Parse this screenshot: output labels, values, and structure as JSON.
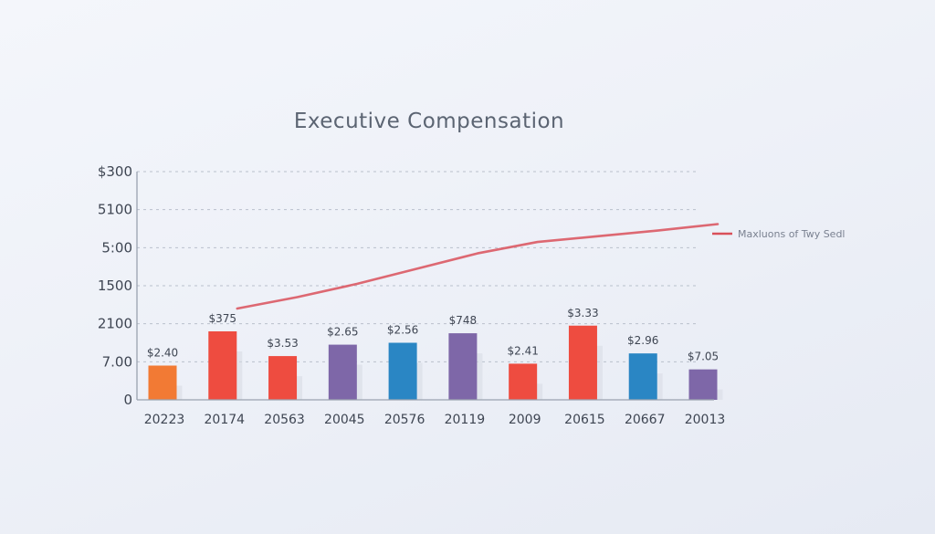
{
  "chart_data": {
    "type": "bar",
    "title": "Executive Compensation",
    "y_tick_labels": [
      "0",
      "7.00",
      "2100",
      "1500",
      "5:00",
      "5100",
      "$300"
    ],
    "categories": [
      "20223",
      "20174",
      "20563",
      "20045",
      "20576",
      "20119",
      "2009",
      "20615",
      "20667",
      "20013"
    ],
    "values": [
      0.9,
      1.8,
      1.15,
      1.45,
      1.5,
      1.75,
      0.95,
      1.95,
      1.22,
      0.8
    ],
    "data_labels": [
      "$2.40",
      "$375",
      "$3.53",
      "$2.65",
      "$2.56",
      "$748",
      "$2.41",
      "$3.33",
      "$2.96",
      "$7.05"
    ],
    "bar_colors": [
      "#f27a34",
      "#ee4c40",
      "#ee4c40",
      "#7e67a8",
      "#2a86c4",
      "#7e67a8",
      "#ee4c40",
      "#ee4c40",
      "#2a86c4",
      "#7e67a8"
    ],
    "line_series": {
      "name": "Maxluons of Twy Sedl",
      "color": "#d9505a",
      "x_start_index": 1,
      "values": [
        2.4,
        2.7,
        3.05,
        3.45,
        3.85,
        4.15,
        4.3,
        4.45,
        4.62
      ]
    },
    "ylim": [
      0,
      6
    ],
    "grid": true,
    "legend_position": "right"
  }
}
